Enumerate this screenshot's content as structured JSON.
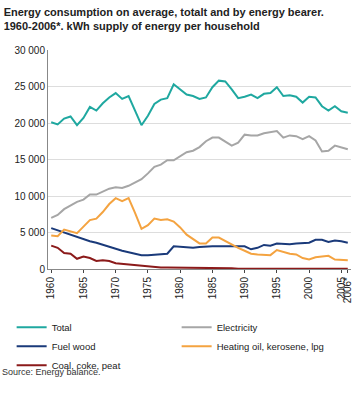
{
  "chart_data": {
    "type": "line",
    "title": "Energy consumption on average, totalt and by energy bearer. 1960-2006*. kWh supply of energy per household",
    "annotations": [
      "Source: Energy balance."
    ],
    "categories": [
      "1960",
      null,
      null,
      null,
      null,
      "1965",
      null,
      null,
      null,
      null,
      "1970",
      null,
      null,
      null,
      null,
      "1975",
      null,
      null,
      null,
      null,
      "1980",
      null,
      null,
      null,
      null,
      "1985",
      null,
      null,
      null,
      null,
      "1990",
      null,
      null,
      null,
      null,
      "1995",
      null,
      null,
      null,
      null,
      "2000",
      null,
      null,
      null,
      null,
      "2005",
      "2006*"
    ],
    "series": [
      {
        "name": "Total",
        "color": "#1fa8a0",
        "values": [
          20100,
          19800,
          20600,
          20900,
          19700,
          20700,
          22200,
          21700,
          22700,
          23500,
          24100,
          23300,
          23700,
          21700,
          19700,
          21000,
          22600,
          23200,
          23400,
          25300,
          24600,
          23900,
          23700,
          23300,
          23500,
          24900,
          25800,
          25700,
          24600,
          23400,
          23600,
          23900,
          23400,
          24000,
          24100,
          24900,
          23700,
          23800,
          23600,
          22800,
          23600,
          23500,
          22300,
          21700,
          22300,
          21600,
          21400
        ]
      },
      {
        "name": "Electricity",
        "color": "#a6a6a6",
        "values": [
          7000,
          7400,
          8200,
          8700,
          9200,
          9500,
          10200,
          10200,
          10600,
          11000,
          11200,
          11100,
          11400,
          11800,
          12300,
          13100,
          14000,
          14300,
          14900,
          14900,
          15500,
          16000,
          16200,
          16700,
          17500,
          18000,
          18000,
          17400,
          16900,
          17300,
          18400,
          18300,
          18300,
          18600,
          18800,
          18900,
          18000,
          18300,
          18200,
          17800,
          18200,
          17600,
          16100,
          16200,
          16900,
          16600,
          16400
        ]
      },
      {
        "name": "Fuel wood",
        "color": "#1a3a7a",
        "values": [
          5600,
          5300,
          4900,
          4600,
          4300,
          4000,
          3800,
          3600,
          3300,
          3000,
          2800,
          2500,
          2300,
          2100,
          1900,
          1900,
          2000,
          2100,
          2100,
          3100,
          3000,
          3000,
          2900,
          3000,
          3100,
          3100,
          3100,
          3100,
          3100,
          3000,
          3100,
          2700,
          2900,
          3300,
          3200,
          3500,
          3400,
          3400,
          3500,
          3500,
          3600,
          4000,
          4000,
          3700,
          3900,
          3800,
          3600
        ]
      },
      {
        "name": "Heating oil, kerosene, lpg",
        "color": "#f4a340",
        "values": [
          4600,
          4500,
          5400,
          5200,
          4900,
          5800,
          6700,
          6900,
          7800,
          8900,
          9700,
          9300,
          9700,
          7700,
          5500,
          6000,
          6900,
          6700,
          6800,
          6500,
          5700,
          4700,
          4100,
          3500,
          3500,
          4300,
          4300,
          3800,
          3400,
          2900,
          2500,
          2100,
          2000,
          2000,
          1900,
          2600,
          2300,
          2100,
          2000,
          1500,
          1300,
          1600,
          1700,
          1800,
          1300,
          1200,
          1200
        ]
      },
      {
        "name": "Coal, coke, peat",
        "color": "#8b1a1a",
        "values": [
          3200,
          2900,
          2200,
          2100,
          1400,
          1700,
          1500,
          1100,
          1200,
          1100,
          800,
          700,
          700,
          500,
          400,
          300,
          300,
          200,
          200,
          200,
          200,
          100,
          100,
          100,
          100,
          100,
          100,
          100,
          100,
          50,
          50,
          50,
          50,
          50,
          50,
          50,
          50,
          50,
          50,
          50,
          50,
          50,
          50,
          50,
          50,
          50,
          50
        ]
      }
    ],
    "ylim": [
      0,
      30000
    ],
    "yticks": [
      0,
      {
        "value": 5000,
        "label": "5 000"
      },
      {
        "value": 10000,
        "label": "10 000"
      },
      {
        "value": 15000,
        "label": "15 000"
      },
      {
        "value": 20000,
        "label": "20 000"
      },
      {
        "value": 25000,
        "label": "25 000"
      },
      {
        "value": 30000,
        "label": "30 000"
      }
    ],
    "grid": true,
    "legend": "bottom"
  }
}
